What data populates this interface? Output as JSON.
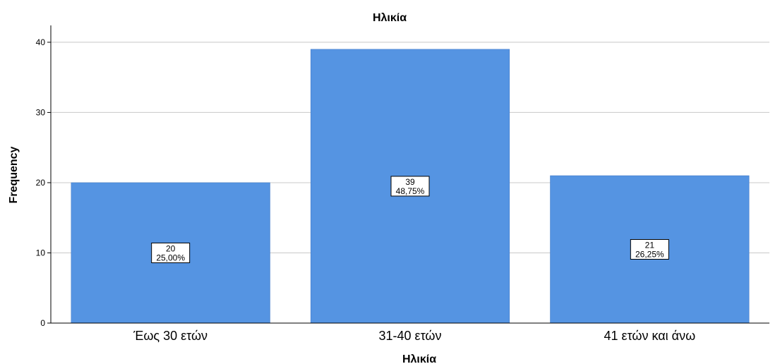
{
  "chart_data": {
    "type": "bar",
    "title": "Ηλικία",
    "xlabel": "Ηλικία",
    "ylabel": "Frequency",
    "categories": [
      "Έως 30 ετών",
      "31-40 ετών",
      "41 ετών και άνω"
    ],
    "values": [
      20,
      39,
      21
    ],
    "data_labels": [
      {
        "count": "20",
        "percent": "25,00%"
      },
      {
        "count": "39",
        "percent": "48,75%"
      },
      {
        "count": "21",
        "percent": "26,25%"
      }
    ],
    "ylim": [
      0,
      42
    ],
    "yticks": [
      "0",
      "10",
      "20",
      "30",
      "40"
    ],
    "grid": true,
    "bar_color": "#5594e2",
    "grid_color": "#c8c8c8"
  }
}
